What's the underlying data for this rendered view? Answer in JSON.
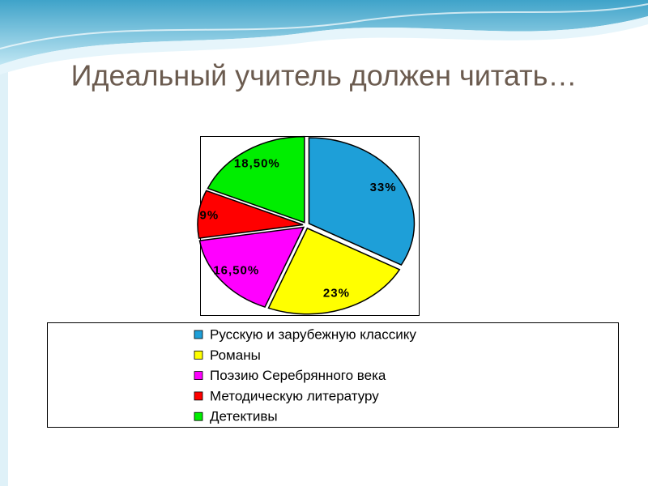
{
  "chart_data": {
    "type": "pie",
    "title": "Идеальный учитель должен читать…",
    "categories": [
      "Русскую и зарубежную классику",
      "Романы",
      "Поэзию Серебрянного века",
      "Методическую литературу",
      "Детективы"
    ],
    "values": [
      33,
      23,
      16.5,
      9,
      18.5
    ],
    "value_labels": [
      "33%",
      "23%",
      "16,50%",
      "9%",
      "18,50%"
    ],
    "colors": [
      "#1e9fd8",
      "#ffff00",
      "#ff00ff",
      "#ff0000",
      "#00ee00"
    ]
  }
}
